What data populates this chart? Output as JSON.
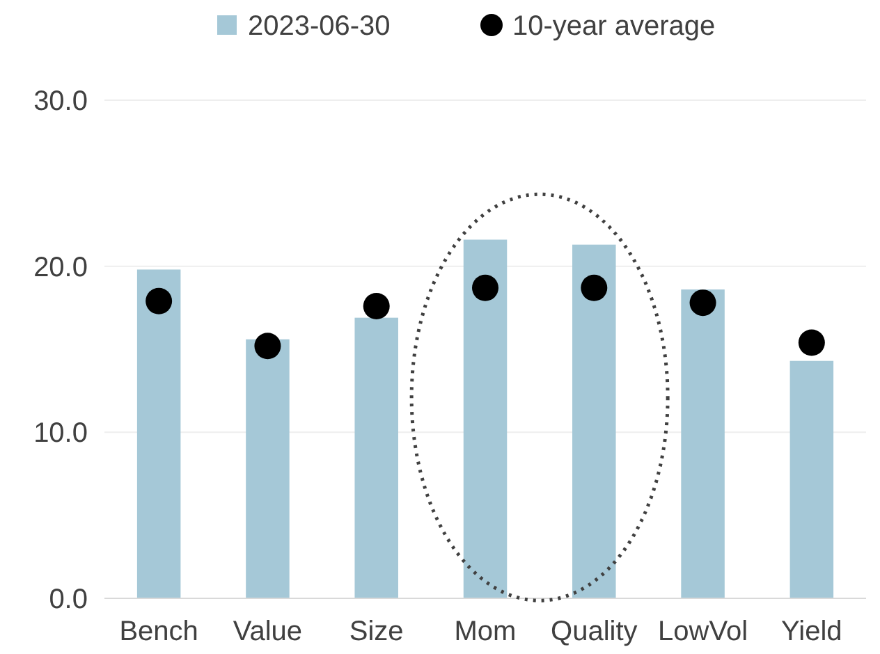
{
  "chart_data": {
    "type": "bar",
    "categories": [
      "Bench",
      "Value",
      "Size",
      "Mom",
      "Quality",
      "LowVol",
      "Yield"
    ],
    "series": [
      {
        "name": "2023-06-30",
        "color": "#a5c8d7",
        "values": [
          19.8,
          15.6,
          16.9,
          21.6,
          21.3,
          18.6,
          14.3
        ]
      },
      {
        "name": "10-year average",
        "type": "scatter",
        "color": "#000000",
        "marker": "circle",
        "x": [
          "Bench",
          "Value",
          "Size",
          "Mom",
          "Quality",
          "LowVol",
          "Yield"
        ],
        "values": [
          17.9,
          15.2,
          17.6,
          18.7,
          18.7,
          17.8,
          15.4
        ]
      }
    ],
    "ylim": [
      0,
      30
    ],
    "yticks": [
      {
        "value": 0,
        "label": "0.0"
      },
      {
        "value": 10,
        "label": "10.0"
      },
      {
        "value": 20,
        "label": "20.0"
      },
      {
        "value": 30,
        "label": "30.0"
      }
    ],
    "grid": "y",
    "legend": "top"
  }
}
